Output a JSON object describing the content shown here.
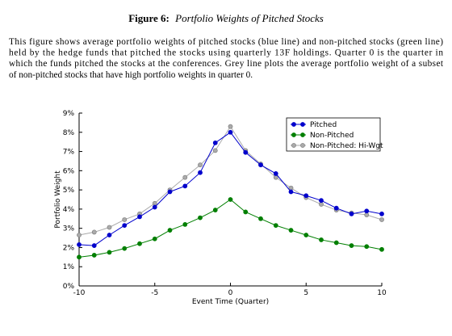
{
  "figure": {
    "label": "Figure 6:",
    "title": "Portfolio Weights of Pitched Stocks",
    "caption_lines": [
      "This figure shows average portfolio weights of pitched stocks (blue line) and non-pitched stocks (green line)",
      "held by the hedge funds that pitched the stocks using quarterly 13F holdings. Quarter 0 is the quarter in",
      "which the funds pitched the stocks at the conferences. Grey line plots the average portfolio weight of a subset",
      "of non-pitched stocks that have high portfolio weights in quarter 0."
    ]
  },
  "chart_data": {
    "type": "line",
    "x_label": "Event Time (Quarter)",
    "y_label": "Portfolio Weight",
    "x": [
      -10,
      -9,
      -8,
      -7,
      -6,
      -5,
      -4,
      -3,
      -2,
      -1,
      0,
      1,
      2,
      3,
      4,
      5,
      6,
      7,
      8,
      9,
      10
    ],
    "series": [
      {
        "name": "Pitched",
        "color": "#0000cc",
        "values": [
          2.15,
          2.1,
          2.65,
          3.15,
          3.6,
          4.1,
          4.9,
          5.2,
          5.9,
          7.45,
          8.0,
          6.95,
          6.3,
          5.85,
          4.9,
          4.7,
          4.45,
          4.05,
          3.75,
          3.9,
          3.75
        ]
      },
      {
        "name": "Non-Pitched",
        "color": "#007f00",
        "values": [
          1.5,
          1.6,
          1.75,
          1.95,
          2.2,
          2.45,
          2.9,
          3.2,
          3.55,
          3.95,
          4.5,
          3.85,
          3.5,
          3.15,
          2.9,
          2.65,
          2.4,
          2.25,
          2.1,
          2.05,
          1.9
        ]
      },
      {
        "name": "Non-Pitched: Hi-Wgt",
        "color": "#aaaaaa",
        "values": [
          2.65,
          2.8,
          3.05,
          3.45,
          3.75,
          4.3,
          5.0,
          5.65,
          6.3,
          7.05,
          8.3,
          7.05,
          6.35,
          5.65,
          5.1,
          4.6,
          4.25,
          3.95,
          3.8,
          3.7,
          3.45
        ]
      }
    ],
    "xlim": [
      -10,
      10
    ],
    "xticks": [
      -10,
      -5,
      0,
      5,
      10
    ],
    "ylim": [
      0,
      9
    ],
    "yticks": [
      {
        "value": 0,
        "label": "0%"
      },
      {
        "value": 1,
        "label": "1%"
      },
      {
        "value": 2,
        "label": "2%"
      },
      {
        "value": 3,
        "label": "3%"
      },
      {
        "value": 4,
        "label": "4%"
      },
      {
        "value": 5,
        "label": "5%"
      },
      {
        "value": 6,
        "label": "6%"
      },
      {
        "value": 7,
        "label": "7%"
      },
      {
        "value": 8,
        "label": "8%"
      },
      {
        "value": 9,
        "label": "9%"
      }
    ],
    "legend": "upper right",
    "grid": false
  }
}
